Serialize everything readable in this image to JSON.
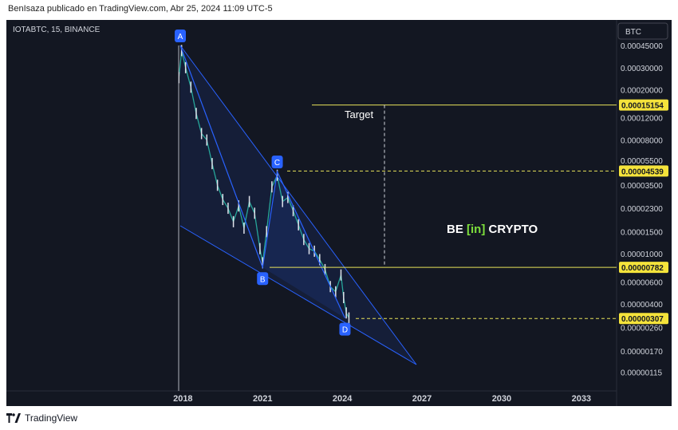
{
  "caption": "BenIsaza publicado en TradingView.com, Abr 25, 2024 11:09 UTC-5",
  "footer": {
    "brand": "TradingView",
    "logo_icon": "tradingview-logo-icon"
  },
  "colors": {
    "background": "#131722",
    "axis_text": "#d1d4dc",
    "pattern_line": "#2962ff",
    "target_line": "#e8e35a",
    "price_tag_bg": "#f5e33b",
    "candle": "#26a69a",
    "point_label_bg": "#2962ff",
    "brand_accent": "#7ddf3c"
  },
  "chart_data": {
    "type": "line",
    "symbol": "IOTABTC, 15, BINANCE",
    "currency_button": "BTC",
    "watermark": {
      "left": "BE",
      "middle": "[in]",
      "right": "CRYPTO"
    },
    "x_ticks": [
      "2018",
      "2021",
      "2024",
      "2027",
      "2030",
      "2033"
    ],
    "y_scale": "log",
    "y_ticks": [
      "0.00045000",
      "0.00030000",
      "0.00020000",
      "0.00012000",
      "0.00008000",
      "0.00005500",
      "0.00003500",
      "0.00002300",
      "0.00001500",
      "0.00001000",
      "0.00000600",
      "0.00000400",
      "0.00000260",
      "0.00000170",
      "0.00000115"
    ],
    "y_tick_values": [
      0.00045,
      0.0003,
      0.0002,
      0.00012,
      8e-05,
      5.5e-05,
      3.5e-05,
      2.3e-05,
      1.5e-05,
      1e-05,
      6e-06,
      4e-06,
      2.6e-06,
      1.7e-06,
      1.15e-06
    ],
    "price_levels": [
      {
        "label": "0.00015154",
        "value": 0.00015154,
        "style": "solid"
      },
      {
        "label": "0.00004539",
        "value": 4.539e-05,
        "style": "dashed"
      },
      {
        "label": "0.00000782",
        "value": 7.82e-06,
        "style": "solid"
      },
      {
        "label": "0.00000307",
        "value": 3.07e-06,
        "style": "dashed"
      }
    ],
    "target_label": "Target",
    "pattern_points": [
      {
        "label": "A",
        "x": 2017.9,
        "y": 0.00045
      },
      {
        "label": "B",
        "x": 2021.0,
        "y": 7.8e-06
      },
      {
        "label": "C",
        "x": 2021.55,
        "y": 4.5e-05
      },
      {
        "label": "D",
        "x": 2024.1,
        "y": 3.1e-06
      }
    ],
    "series": [
      {
        "values": [
          [
            2017.85,
            0.00025
          ],
          [
            2017.95,
            0.00041
          ],
          [
            2018.1,
            0.0003
          ],
          [
            2018.3,
            0.00021
          ],
          [
            2018.5,
            0.00013
          ],
          [
            2018.7,
            9e-05
          ],
          [
            2018.9,
            8e-05
          ],
          [
            2019.1,
            5.2e-05
          ],
          [
            2019.3,
            3.5e-05
          ],
          [
            2019.5,
            2.7e-05
          ],
          [
            2019.7,
            2.3e-05
          ],
          [
            2019.9,
            1.8e-05
          ],
          [
            2020.1,
            2.4e-05
          ],
          [
            2020.3,
            1.6e-05
          ],
          [
            2020.5,
            2.6e-05
          ],
          [
            2020.7,
            2.1e-05
          ],
          [
            2020.9,
            1.1e-05
          ],
          [
            2021.0,
            8.5e-06
          ],
          [
            2021.15,
            1.5e-05
          ],
          [
            2021.35,
            3.4e-05
          ],
          [
            2021.55,
            4.2e-05
          ],
          [
            2021.75,
            2.6e-05
          ],
          [
            2021.95,
            2.8e-05
          ],
          [
            2022.15,
            2.2e-05
          ],
          [
            2022.35,
            1.7e-05
          ],
          [
            2022.55,
            1.3e-05
          ],
          [
            2022.75,
            1.1e-05
          ],
          [
            2022.95,
            1.05e-05
          ],
          [
            2023.15,
            9e-06
          ],
          [
            2023.35,
            7.5e-06
          ],
          [
            2023.55,
            5.5e-06
          ],
          [
            2023.75,
            5e-06
          ],
          [
            2023.95,
            6.8e-06
          ],
          [
            2024.05,
            4.5e-06
          ],
          [
            2024.15,
            3.4e-06
          ],
          [
            2024.25,
            3.1e-06
          ]
        ]
      }
    ]
  }
}
